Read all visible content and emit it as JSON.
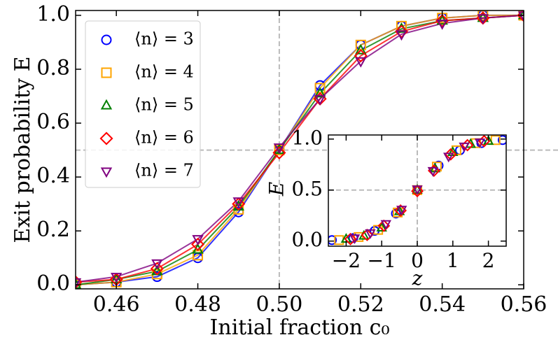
{
  "chart_data": [
    {
      "type": "line",
      "xlabel": "Initial fraction c₀",
      "ylabel": "Exit probability E",
      "x": [
        0.45,
        0.46,
        0.47,
        0.48,
        0.49,
        0.5,
        0.51,
        0.52,
        0.53,
        0.54,
        0.55,
        0.56
      ],
      "xlim": [
        0.45,
        0.56
      ],
      "ylim": [
        -0.015,
        1.018
      ],
      "xticks": [
        0.46,
        0.48,
        {
          "value": 0.5,
          "label": "0.50"
        },
        0.52,
        0.54,
        0.56
      ],
      "yticks": [
        {
          "value": 0,
          "label": "0.0"
        },
        0.2,
        0.4,
        0.6,
        0.8,
        {
          "value": 1,
          "label": "1.0"
        }
      ],
      "vlines": [
        0.5
      ],
      "hlines": [
        0.5
      ],
      "legend": "upper left",
      "series": [
        {
          "name": "⟨n⟩ = 3",
          "color": "#0000ff",
          "marker": "circle",
          "values": [
            0.0,
            0.01,
            0.03,
            0.1,
            0.27,
            0.5,
            0.74,
            0.89,
            0.96,
            0.99,
            1.0,
            1.0
          ]
        },
        {
          "name": "⟨n⟩ = 4",
          "color": "#ffa500",
          "marker": "square",
          "values": [
            0.0,
            0.01,
            0.04,
            0.11,
            0.28,
            0.5,
            0.73,
            0.89,
            0.96,
            0.99,
            1.0,
            1.0
          ]
        },
        {
          "name": "⟨n⟩ = 5",
          "color": "#008000",
          "marker": "triangle-up",
          "values": [
            0.0,
            0.02,
            0.05,
            0.13,
            0.29,
            0.5,
            0.71,
            0.87,
            0.95,
            0.98,
            0.99,
            1.0
          ]
        },
        {
          "name": "⟨n⟩ = 6",
          "color": "#ff0000",
          "marker": "diamond",
          "values": [
            0.01,
            0.02,
            0.06,
            0.15,
            0.3,
            0.49,
            0.69,
            0.85,
            0.94,
            0.98,
            0.99,
            1.0
          ]
        },
        {
          "name": "⟨n⟩ = 7",
          "color": "#800080",
          "marker": "triangle-down",
          "values": [
            0.01,
            0.03,
            0.08,
            0.17,
            0.31,
            0.51,
            0.69,
            0.83,
            0.93,
            0.97,
            0.99,
            1.0
          ]
        }
      ]
    },
    {
      "type": "scatter",
      "xlabel": "z",
      "ylabel": "E",
      "xlim": [
        -2.5,
        2.5
      ],
      "ylim": [
        -0.05,
        1.04
      ],
      "xticks": [
        {
          "value": -2,
          "label": "−2"
        },
        {
          "value": -1,
          "label": "−1"
        },
        0,
        1,
        2
      ],
      "yticks": [
        {
          "value": 0,
          "label": "0.0"
        },
        0.5,
        {
          "value": 1,
          "label": "1.0"
        }
      ],
      "vlines": [
        0
      ],
      "hlines": [
        0.5
      ],
      "series": [
        {
          "color": "#0000ff",
          "marker": "circle",
          "x": [
            -2.4,
            -1.8,
            -1.2,
            -0.6,
            0,
            0.6,
            1.2,
            1.8,
            2.4
          ],
          "values": [
            0.01,
            0.03,
            0.1,
            0.27,
            0.5,
            0.74,
            0.89,
            0.96,
            0.99
          ]
        },
        {
          "color": "#ffa500",
          "marker": "square",
          "x": [
            -2.2,
            -1.65,
            -1.1,
            -0.55,
            0,
            0.55,
            1.1,
            1.65,
            2.2
          ],
          "values": [
            0.01,
            0.04,
            0.11,
            0.28,
            0.5,
            0.73,
            0.89,
            0.96,
            0.99
          ]
        },
        {
          "color": "#008000",
          "marker": "triangle-up",
          "x": [
            -2,
            -1.5,
            -1,
            -0.5,
            0,
            0.5,
            1,
            1.5,
            2
          ],
          "values": [
            0.02,
            0.05,
            0.13,
            0.29,
            0.5,
            0.71,
            0.87,
            0.95,
            0.98
          ]
        },
        {
          "color": "#ff0000",
          "marker": "diamond",
          "x": [
            -1.88,
            -1.41,
            -0.94,
            -0.47,
            0,
            0.47,
            0.94,
            1.41,
            1.88
          ],
          "values": [
            0.02,
            0.06,
            0.15,
            0.3,
            0.49,
            0.69,
            0.85,
            0.94,
            0.98
          ]
        },
        {
          "color": "#800080",
          "marker": "triangle-down",
          "x": [
            -1.76,
            -1.32,
            -0.88,
            -0.44,
            0,
            0.44,
            0.88,
            1.32,
            1.76
          ],
          "values": [
            0.03,
            0.08,
            0.17,
            0.31,
            0.51,
            0.69,
            0.83,
            0.93,
            0.97
          ]
        }
      ]
    }
  ]
}
